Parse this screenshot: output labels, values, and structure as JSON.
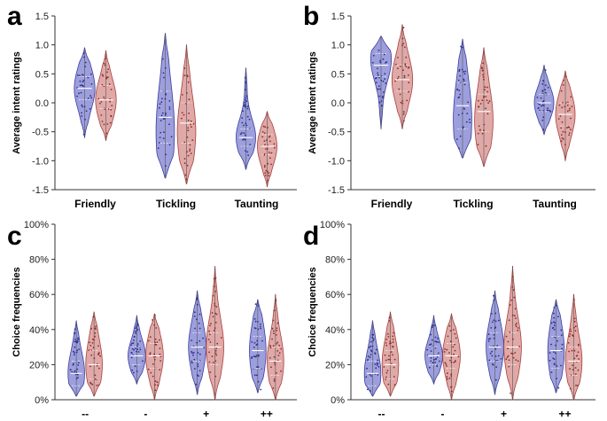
{
  "colors": {
    "blue_fill": "#8c8ed6",
    "blue_stroke": "#3a3d9e",
    "red_fill": "#d99a98",
    "red_stroke": "#a8403e",
    "dot_blue": "#2b2f8a",
    "dot_red": "#8e2c2a"
  },
  "chart_data": [
    {
      "panel": "a",
      "type": "violin",
      "ylabel": "Average intent ratings",
      "ylim": [
        -1.5,
        1.5
      ],
      "yticks": [
        -1.5,
        -1.0,
        -0.5,
        0.0,
        0.5,
        1.0,
        1.5
      ],
      "ytick_labels": [
        "-1.5",
        "-1.0",
        "-0.5",
        "0.0",
        "0.5",
        "1.0",
        "1.5"
      ],
      "categories": [
        "Friendly",
        "Tickling",
        "Taunting"
      ],
      "series": [
        {
          "name": "blue",
          "groups": [
            {
              "min": -0.6,
              "max": 0.95,
              "median": 0.25,
              "q1": 0.05,
              "q3": 0.45,
              "mode": 0.25,
              "width": 0.9
            },
            {
              "min": -1.3,
              "max": 1.2,
              "median": -0.25,
              "q1": -0.7,
              "q3": 0.2,
              "mode": -0.5,
              "width": 0.8
            },
            {
              "min": -1.15,
              "max": 0.6,
              "median": -0.6,
              "q1": -0.75,
              "q3": -0.45,
              "mode": -0.6,
              "width": 0.85
            }
          ]
        },
        {
          "name": "red",
          "groups": [
            {
              "min": -0.65,
              "max": 0.9,
              "median": 0.05,
              "q1": -0.1,
              "q3": 0.3,
              "mode": 0.05,
              "width": 0.9
            },
            {
              "min": -1.4,
              "max": 1.0,
              "median": -0.35,
              "q1": -0.7,
              "q3": 0.0,
              "mode": -0.5,
              "width": 0.8
            },
            {
              "min": -1.45,
              "max": -0.15,
              "median": -0.75,
              "q1": -0.9,
              "q3": -0.55,
              "mode": -0.75,
              "width": 0.85
            }
          ]
        }
      ]
    },
    {
      "panel": "b",
      "type": "violin",
      "ylabel": "Average intent ratings",
      "ylim": [
        -1.5,
        1.5
      ],
      "yticks": [
        -1.5,
        -1.0,
        -0.5,
        0.0,
        0.5,
        1.0,
        1.5
      ],
      "ytick_labels": [
        "-1.5",
        "-1.0",
        "-0.5",
        "0.0",
        "0.5",
        "1.0",
        "1.5"
      ],
      "categories": [
        "Friendly",
        "Tickling",
        "Taunting"
      ],
      "series": [
        {
          "name": "blue",
          "groups": [
            {
              "min": -0.45,
              "max": 1.15,
              "median": 0.65,
              "q1": 0.45,
              "q3": 0.85,
              "mode": 0.75,
              "width": 0.9
            },
            {
              "min": -0.95,
              "max": 1.1,
              "median": -0.05,
              "q1": -0.45,
              "q3": 0.35,
              "mode": -0.3,
              "width": 0.8
            },
            {
              "min": -0.55,
              "max": 0.65,
              "median": 0.0,
              "q1": -0.15,
              "q3": 0.15,
              "mode": 0.0,
              "width": 0.85
            }
          ]
        },
        {
          "name": "red",
          "groups": [
            {
              "min": -0.45,
              "max": 1.35,
              "median": 0.4,
              "q1": 0.2,
              "q3": 0.65,
              "mode": 0.4,
              "width": 0.9
            },
            {
              "min": -1.1,
              "max": 0.95,
              "median": -0.15,
              "q1": -0.5,
              "q3": 0.15,
              "mode": -0.3,
              "width": 0.8
            },
            {
              "min": -1.0,
              "max": 0.55,
              "median": -0.2,
              "q1": -0.4,
              "q3": 0.0,
              "mode": -0.2,
              "width": 0.85
            }
          ]
        }
      ]
    },
    {
      "panel": "c",
      "type": "violin",
      "ylabel": "Choice frequencies",
      "ylim": [
        0,
        100
      ],
      "yticks": [
        0,
        20,
        40,
        60,
        80,
        100
      ],
      "ytick_labels": [
        "0%",
        "20%",
        "40%",
        "60%",
        "80%",
        "100%"
      ],
      "categories": [
        "--",
        "-",
        "+",
        "++"
      ],
      "series": [
        {
          "name": "blue",
          "groups": [
            {
              "min": 2,
              "max": 45,
              "median": 15,
              "q1": 8,
              "q3": 22,
              "mode": 15,
              "width": 0.85
            },
            {
              "min": 9,
              "max": 48,
              "median": 25,
              "q1": 20,
              "q3": 30,
              "mode": 25,
              "width": 0.9
            },
            {
              "min": 3,
              "max": 62,
              "median": 30,
              "q1": 22,
              "q3": 38,
              "mode": 30,
              "width": 0.9
            },
            {
              "min": 4,
              "max": 57,
              "median": 28,
              "q1": 18,
              "q3": 36,
              "mode": 28,
              "width": 0.85
            }
          ]
        },
        {
          "name": "red",
          "groups": [
            {
              "min": 2,
              "max": 50,
              "median": 20,
              "q1": 12,
              "q3": 28,
              "mode": 20,
              "width": 0.85
            },
            {
              "min": 0,
              "max": 49,
              "median": 25,
              "q1": 18,
              "q3": 32,
              "mode": 25,
              "width": 0.9
            },
            {
              "min": 0,
              "max": 76,
              "median": 30,
              "q1": 20,
              "q3": 38,
              "mode": 30,
              "width": 0.9
            },
            {
              "min": 0,
              "max": 60,
              "median": 22,
              "q1": 14,
              "q3": 30,
              "mode": 22,
              "width": 0.85
            }
          ]
        }
      ]
    },
    {
      "panel": "d",
      "type": "violin",
      "ylabel": "Choice frequencies",
      "ylim": [
        0,
        100
      ],
      "yticks": [
        0,
        20,
        40,
        60,
        80,
        100
      ],
      "ytick_labels": [
        "0%",
        "20%",
        "40%",
        "60%",
        "80%",
        "100%"
      ],
      "categories": [
        "--",
        "-",
        "+",
        "++"
      ],
      "series": [
        {
          "name": "blue",
          "groups": [
            {
              "min": 2,
              "max": 45,
              "median": 15,
              "q1": 8,
              "q3": 22,
              "mode": 15,
              "width": 0.85
            },
            {
              "min": 9,
              "max": 48,
              "median": 25,
              "q1": 20,
              "q3": 30,
              "mode": 25,
              "width": 0.9
            },
            {
              "min": 3,
              "max": 62,
              "median": 30,
              "q1": 22,
              "q3": 38,
              "mode": 30,
              "width": 0.9
            },
            {
              "min": 4,
              "max": 57,
              "median": 28,
              "q1": 18,
              "q3": 36,
              "mode": 28,
              "width": 0.85
            }
          ]
        },
        {
          "name": "red",
          "groups": [
            {
              "min": 2,
              "max": 50,
              "median": 20,
              "q1": 12,
              "q3": 28,
              "mode": 20,
              "width": 0.85
            },
            {
              "min": 0,
              "max": 49,
              "median": 25,
              "q1": 18,
              "q3": 32,
              "mode": 25,
              "width": 0.9
            },
            {
              "min": 0,
              "max": 76,
              "median": 30,
              "q1": 20,
              "q3": 38,
              "mode": 30,
              "width": 0.9
            },
            {
              "min": 0,
              "max": 60,
              "median": 22,
              "q1": 14,
              "q3": 30,
              "mode": 22,
              "width": 0.85
            }
          ]
        }
      ]
    }
  ]
}
